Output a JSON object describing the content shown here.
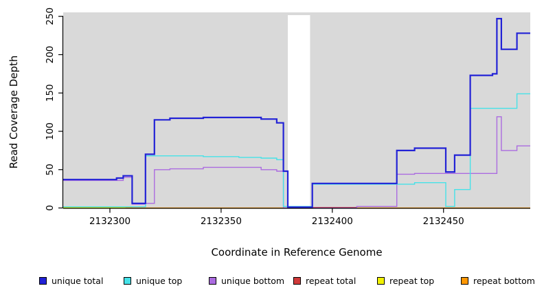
{
  "chart_data": {
    "type": "line",
    "subtype": "step-coverage-plot",
    "title": "",
    "xlabel": "Coordinate in Reference Genome",
    "ylabel": "Read Coverage Depth",
    "x_range": [
      2132279,
      2132489
    ],
    "y_range": [
      0,
      250
    ],
    "x_ticks": [
      "2132300",
      "2132350",
      "2132400",
      "2132450"
    ],
    "x_tick_values": [
      2132300,
      2132350,
      2132400,
      2132450
    ],
    "y_ticks": [
      "0",
      "50",
      "100",
      "150",
      "200",
      "250"
    ],
    "y_tick_values": [
      0,
      50,
      100,
      150,
      200,
      250
    ],
    "grid": false,
    "plot_bg": "#d9d9d9",
    "masked_region": {
      "x_start": 2132380,
      "x_end": 2132390,
      "color": "#ffffff"
    },
    "legend_position": "bottom",
    "series": [
      {
        "name": "unique total",
        "color": "#2222d6",
        "line_width": 2.2,
        "points": [
          [
            2132279,
            37
          ],
          [
            2132303,
            39
          ],
          [
            2132306,
            42
          ],
          [
            2132310,
            6
          ],
          [
            2132316,
            70
          ],
          [
            2132320,
            115
          ],
          [
            2132327,
            117
          ],
          [
            2132342,
            118
          ],
          [
            2132368,
            116
          ],
          [
            2132375,
            111
          ],
          [
            2132378,
            48
          ],
          [
            2132380,
            1
          ],
          [
            2132391,
            32
          ],
          [
            2132429,
            75
          ],
          [
            2132437,
            78
          ],
          [
            2132451,
            47
          ],
          [
            2132455,
            69
          ],
          [
            2132462,
            173
          ],
          [
            2132472,
            175
          ],
          [
            2132474,
            247
          ],
          [
            2132476,
            207
          ],
          [
            2132483,
            228
          ],
          [
            2132489,
            228
          ]
        ]
      },
      {
        "name": "unique top",
        "color": "#45e2e8",
        "line_width": 1.4,
        "points": [
          [
            2132279,
            1.5
          ],
          [
            2132316,
            68
          ],
          [
            2132342,
            67
          ],
          [
            2132358,
            66
          ],
          [
            2132368,
            65
          ],
          [
            2132375,
            63
          ],
          [
            2132378,
            2
          ],
          [
            2132391,
            31
          ],
          [
            2132437,
            33
          ],
          [
            2132451,
            2
          ],
          [
            2132455,
            24
          ],
          [
            2132462,
            130
          ],
          [
            2132483,
            149
          ],
          [
            2132489,
            149
          ]
        ]
      },
      {
        "name": "unique bottom",
        "color": "#ab6be0",
        "line_width": 1.4,
        "points": [
          [
            2132279,
            36
          ],
          [
            2132306,
            40
          ],
          [
            2132310,
            5
          ],
          [
            2132316,
            6
          ],
          [
            2132320,
            50
          ],
          [
            2132327,
            51
          ],
          [
            2132342,
            53
          ],
          [
            2132368,
            50
          ],
          [
            2132375,
            48
          ],
          [
            2132378,
            0
          ],
          [
            2132411,
            2
          ],
          [
            2132429,
            44
          ],
          [
            2132437,
            45
          ],
          [
            2132474,
            119
          ],
          [
            2132476,
            75
          ],
          [
            2132483,
            81
          ],
          [
            2132489,
            81
          ]
        ]
      },
      {
        "name": "repeat total",
        "color": "#d03a3a",
        "line_width": 1.3,
        "points": [
          [
            2132391,
            0.8
          ],
          [
            2132411,
            0.8
          ]
        ]
      },
      {
        "name": "repeat top",
        "color": "#f2f200",
        "line_width": 1.3,
        "points": [
          [
            2132279,
            0.6
          ],
          [
            2132310,
            0.6
          ]
        ]
      },
      {
        "name": "repeat bottom",
        "color": "#ff9702",
        "line_width": 1.6,
        "points": [
          [
            2132307,
            0
          ],
          [
            2132489,
            0
          ]
        ]
      }
    ]
  }
}
